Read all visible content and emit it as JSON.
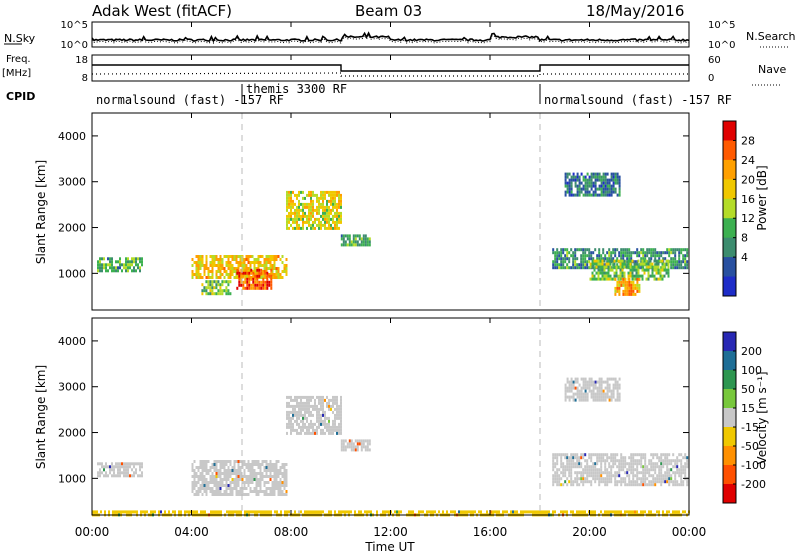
{
  "header": {
    "station": "Adak West (fitACF)",
    "beam": "Beam 03",
    "date": "18/May/2016"
  },
  "side_labels": {
    "nsky": "N.Sky",
    "nsearch": "N.Search",
    "freq": "Freq.",
    "freq_unit": "[MHz]",
    "nave": "Nave",
    "cpid": "CPID"
  },
  "noise_panel": {
    "left_ticks": [
      "10^5",
      "10^0"
    ],
    "right_ticks": [
      "10^5",
      "10^0"
    ]
  },
  "freq_panel": {
    "left_ticks": [
      "18",
      "8"
    ],
    "right_ticks": [
      "60",
      "0"
    ]
  },
  "cpid_segments": [
    {
      "label": "normalsound (fast) -157 RF",
      "start_hour": 0
    },
    {
      "label": "themis 3300 RF",
      "start_hour": 6
    },
    {
      "label": "normalsound (fast) -157 RF",
      "start_hour": 18
    }
  ],
  "colorbars": {
    "power": {
      "label": "Power [dB]",
      "ticks": [
        "28",
        "24",
        "20",
        "16",
        "12",
        "8",
        "4"
      ],
      "colors": [
        "#e00000",
        "#ff5a00",
        "#ffa000",
        "#f0c800",
        "#b4dc28",
        "#3cb050",
        "#3c8c6e",
        "#2850a0",
        "#1e2dc8"
      ]
    },
    "velocity": {
      "label": "Velocity [m s⁻¹]",
      "ticks": [
        "200",
        "100",
        "50",
        "15",
        "-15",
        "-50",
        "-100",
        "-200"
      ],
      "colors": [
        "#2828b4",
        "#1e6e96",
        "#2d9650",
        "#78c83c",
        "#c8c8c8",
        "#f0c800",
        "#ff9000",
        "#ff5000",
        "#e00000"
      ]
    }
  },
  "axes": {
    "ylabel": "Slant Range [km]",
    "y_ticks": [
      "4000",
      "3000",
      "2000",
      "1000"
    ],
    "xlabel": "Time UT",
    "x_ticks": [
      "00:00",
      "04:00",
      "08:00",
      "12:00",
      "16:00",
      "20:00",
      "00:00"
    ]
  },
  "chart_data": [
    {
      "type": "heatmap",
      "name": "power",
      "x_range_hours": [
        0,
        24
      ],
      "y_range_km": [
        200,
        4500
      ],
      "regions": [
        {
          "t0": 0.2,
          "t1": 2.0,
          "r0": 1050,
          "r1": 1350,
          "value_db": 10
        },
        {
          "t0": 4.0,
          "t1": 7.8,
          "r0": 900,
          "r1": 1400,
          "value_db": 18
        },
        {
          "t0": 5.8,
          "t1": 7.2,
          "r0": 650,
          "r1": 1100,
          "value_db": 24
        },
        {
          "t0": 4.4,
          "t1": 5.6,
          "r0": 550,
          "r1": 850,
          "value_db": 12
        },
        {
          "t0": 7.8,
          "t1": 10.0,
          "r0": 2000,
          "r1": 2800,
          "value_db": 16
        },
        {
          "t0": 10.0,
          "t1": 11.2,
          "r0": 1600,
          "r1": 1850,
          "value_db": 10
        },
        {
          "t0": 18.5,
          "t1": 23.9,
          "r0": 1150,
          "r1": 1550,
          "value_db": 8
        },
        {
          "t0": 20.0,
          "t1": 23.2,
          "r0": 850,
          "r1": 1300,
          "value_db": 12
        },
        {
          "t0": 21.0,
          "t1": 22.0,
          "r0": 550,
          "r1": 900,
          "value_db": 20
        },
        {
          "t0": 19.0,
          "t1": 21.2,
          "r0": 2700,
          "r1": 3200,
          "value_db": 6
        }
      ]
    },
    {
      "type": "heatmap",
      "name": "velocity",
      "x_range_hours": [
        0,
        24
      ],
      "y_range_km": [
        200,
        4500
      ],
      "regions": [
        {
          "t0": 0.2,
          "t1": 2.0,
          "r0": 1050,
          "r1": 1350,
          "value_ms": 0
        },
        {
          "t0": 4.0,
          "t1": 7.8,
          "r0": 650,
          "r1": 1400,
          "value_ms": 0
        },
        {
          "t0": 7.8,
          "t1": 10.0,
          "r0": 2000,
          "r1": 2800,
          "value_ms": 0
        },
        {
          "t0": 10.0,
          "t1": 11.2,
          "r0": 1600,
          "r1": 1850,
          "value_ms": 0
        },
        {
          "t0": 18.5,
          "t1": 23.9,
          "r0": 850,
          "r1": 1550,
          "value_ms": 0
        },
        {
          "t0": 19.0,
          "t1": 21.2,
          "r0": 2700,
          "r1": 3200,
          "value_ms": 0
        },
        {
          "t0": 0.0,
          "t1": 24.0,
          "r0": 200,
          "r1": 300,
          "value_ms": -30
        }
      ]
    }
  ]
}
